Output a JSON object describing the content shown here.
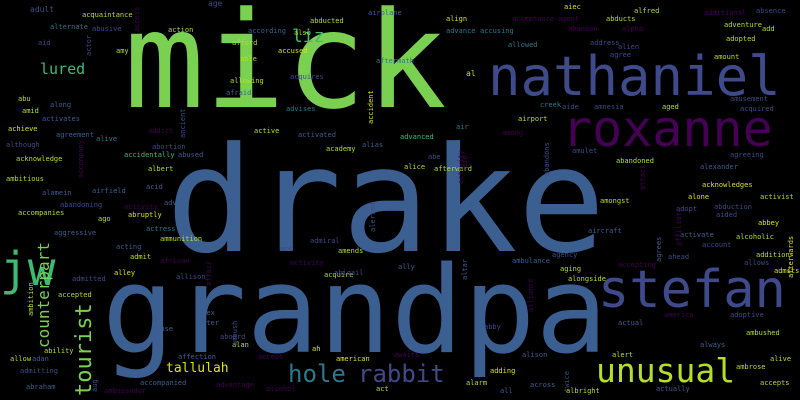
{
  "palette": {
    "background": "#000000",
    "lime": "#7ad151",
    "steel_blue": "#3b5f91",
    "indigo": "#3e4a89",
    "purple": "#440154",
    "teal": "#2a788e",
    "yellow": "#dbe318",
    "green": "#3bbb75",
    "grey": "#9e9e9e"
  },
  "words": [
    {
      "text": "drake",
      "color": "#3b5f91"
    },
    {
      "text": "mick",
      "color": "#7ad151"
    },
    {
      "text": "grandpa",
      "color": "#3b5f91"
    },
    {
      "text": "nathaniel",
      "color": "#3e4a89"
    },
    {
      "text": "roxanne",
      "color": "#440154"
    },
    {
      "text": "stefan",
      "color": "#3e4a89"
    },
    {
      "text": "unusual",
      "color": "#b5de2b"
    },
    {
      "text": "jw",
      "color": "#3bbb75"
    },
    {
      "text": "hole",
      "color": "#2a788e"
    },
    {
      "text": "rabbit",
      "color": "#3e4a89"
    },
    {
      "text": "tourist",
      "color": "#7ad151"
    },
    {
      "text": "counterpart",
      "color": "#7ad151"
    },
    {
      "text": "lured",
      "color": "#3bbb75"
    },
    {
      "text": "liz",
      "color": "#3bbb75"
    },
    {
      "text": "tallulah",
      "color": "#dbe318"
    },
    {
      "text": "adult",
      "color": "#3e4a89"
    },
    {
      "text": "age",
      "color": "#3e4a89"
    },
    {
      "text": "alternate",
      "color": "#2a788e"
    },
    {
      "text": "acquaintance",
      "color": "#b5de2b"
    },
    {
      "text": "abusive",
      "color": "#3e4a89"
    },
    {
      "text": "action",
      "color": "#b5de2b"
    },
    {
      "text": "according",
      "color": "#3b5f91"
    },
    {
      "text": "also",
      "color": "#b5de2b"
    },
    {
      "text": "abducted",
      "color": "#b5de2b"
    },
    {
      "text": "airplane",
      "color": "#3b5f91"
    },
    {
      "text": "align",
      "color": "#dbe318"
    },
    {
      "text": "advance",
      "color": "#2a788e"
    },
    {
      "text": "accusing",
      "color": "#2a788e"
    },
    {
      "text": "acceptance",
      "color": "#440154"
    },
    {
      "text": "agent",
      "color": "#440154"
    },
    {
      "text": "aiec",
      "color": "#dbe318"
    },
    {
      "text": "abducts",
      "color": "#b5de2b"
    },
    {
      "text": "alfred",
      "color": "#b5de2b"
    },
    {
      "text": "additional",
      "color": "#440154"
    },
    {
      "text": "absence",
      "color": "#3e4a89"
    },
    {
      "text": "abandon",
      "color": "#440154"
    },
    {
      "text": "alpha",
      "color": "#440154"
    },
    {
      "text": "adventure",
      "color": "#b5de2b"
    },
    {
      "text": "add",
      "color": "#b5de2b"
    },
    {
      "text": "aid",
      "color": "#3e4a89"
    },
    {
      "text": "amy",
      "color": "#b5de2b"
    },
    {
      "text": "afford",
      "color": "#b5de2b"
    },
    {
      "text": "accused",
      "color": "#dbe318"
    },
    {
      "text": "allowed",
      "color": "#2a788e"
    },
    {
      "text": "address",
      "color": "#3e4a89"
    },
    {
      "text": "alien",
      "color": "#3e4a89"
    },
    {
      "text": "adopted",
      "color": "#b5de2b"
    },
    {
      "text": "amount",
      "color": "#b5de2b"
    },
    {
      "text": "able",
      "color": "#b5de2b"
    },
    {
      "text": "aftermath",
      "color": "#2a788e"
    },
    {
      "text": "al",
      "color": "#b5de2b"
    },
    {
      "text": "agree",
      "color": "#3e4a89"
    },
    {
      "text": "allowing",
      "color": "#b5de2b"
    },
    {
      "text": "afraid",
      "color": "#3b5f91"
    },
    {
      "text": "acquires",
      "color": "#3e4a89"
    },
    {
      "text": "abu",
      "color": "#b5de2b"
    },
    {
      "text": "along",
      "color": "#3b5f91"
    },
    {
      "text": "amid",
      "color": "#b5de2b"
    },
    {
      "text": "activates",
      "color": "#3b5f91"
    },
    {
      "text": "advises",
      "color": "#2a788e"
    },
    {
      "text": "creek",
      "color": "#2a788e"
    },
    {
      "text": "aide",
      "color": "#3e4a89"
    },
    {
      "text": "amnesia",
      "color": "#3e4a89"
    },
    {
      "text": "aged",
      "color": "#b5de2b"
    },
    {
      "text": "amusement",
      "color": "#3e4a89"
    },
    {
      "text": "acquired",
      "color": "#3e4a89"
    },
    {
      "text": "achieve",
      "color": "#dbe318"
    },
    {
      "text": "agreement",
      "color": "#3b5f91"
    },
    {
      "text": "alive",
      "color": "#2a788e"
    },
    {
      "text": "addict",
      "color": "#440154"
    },
    {
      "text": "active",
      "color": "#b5de2b"
    },
    {
      "text": "activated",
      "color": "#3b5f91"
    },
    {
      "text": "air",
      "color": "#2a788e"
    },
    {
      "text": "airport",
      "color": "#b5de2b"
    },
    {
      "text": "among",
      "color": "#440154"
    },
    {
      "text": "advanced",
      "color": "#3bbb75"
    },
    {
      "text": "although",
      "color": "#3e4a89"
    },
    {
      "text": "abortion",
      "color": "#3e4a89"
    },
    {
      "text": "academy",
      "color": "#b5de2b"
    },
    {
      "text": "alias",
      "color": "#3b5f91"
    },
    {
      "text": "amulet",
      "color": "#3e4a89"
    },
    {
      "text": "agreeing",
      "color": "#3e4a89"
    },
    {
      "text": "acknowledge",
      "color": "#b5de2b"
    },
    {
      "text": "accidentally",
      "color": "#3bbb75"
    },
    {
      "text": "abused",
      "color": "#3b5f91"
    },
    {
      "text": "abe",
      "color": "#3e4a89"
    },
    {
      "text": "abandoned",
      "color": "#b5de2b"
    },
    {
      "text": "alexander",
      "color": "#3b5f91"
    },
    {
      "text": "albert",
      "color": "#b5de2b"
    },
    {
      "text": "alice",
      "color": "#b5de2b"
    },
    {
      "text": "afterward",
      "color": "#b5de2b"
    },
    {
      "text": "ambitious",
      "color": "#b5de2b"
    },
    {
      "text": "acknowledges",
      "color": "#dbe318"
    },
    {
      "text": "alamein",
      "color": "#3b5f91"
    },
    {
      "text": "acid",
      "color": "#3b5f91"
    },
    {
      "text": "alone",
      "color": "#dbe318"
    },
    {
      "text": "abduction",
      "color": "#3e4a89"
    },
    {
      "text": "activist",
      "color": "#b5de2b"
    },
    {
      "text": "airfield",
      "color": "#3b5f91"
    },
    {
      "text": "amongst",
      "color": "#b5de2b"
    },
    {
      "text": "adopt",
      "color": "#3e4a89"
    },
    {
      "text": "aided",
      "color": "#3e4a89"
    },
    {
      "text": "abandoning",
      "color": "#3e4a89"
    },
    {
      "text": "activity",
      "color": "#440154"
    },
    {
      "text": "advice",
      "color": "#3b5f91"
    },
    {
      "text": "accompanies",
      "color": "#b5de2b"
    },
    {
      "text": "ago",
      "color": "#b5de2b"
    },
    {
      "text": "abruptly",
      "color": "#dbe318"
    },
    {
      "text": "abbey",
      "color": "#dbe318"
    },
    {
      "text": "actress",
      "color": "#2a788e"
    },
    {
      "text": "aggressive",
      "color": "#3b5f91"
    },
    {
      "text": "ammunition",
      "color": "#b5de2b"
    },
    {
      "text": "aircraft",
      "color": "#3b5f91"
    },
    {
      "text": "activate",
      "color": "#3b5f91"
    },
    {
      "text": "alcoholic",
      "color": "#b5de2b"
    },
    {
      "text": "admiral",
      "color": "#3e4a89"
    },
    {
      "text": "amends",
      "color": "#b5de2b"
    },
    {
      "text": "acting",
      "color": "#3b5f91"
    },
    {
      "text": "ace",
      "color": "#3e4a89"
    },
    {
      "text": "account",
      "color": "#3e4a89"
    },
    {
      "text": "addition",
      "color": "#b5de2b"
    },
    {
      "text": "admit",
      "color": "#b5de2b"
    },
    {
      "text": "african",
      "color": "#440154"
    },
    {
      "text": "activity",
      "color": "#440154"
    },
    {
      "text": "agency",
      "color": "#3e4a89"
    },
    {
      "text": "ambulance",
      "color": "#3b5f91"
    },
    {
      "text": "allows",
      "color": "#3e4a89"
    },
    {
      "text": "admits",
      "color": "#dbe318"
    },
    {
      "text": "alley",
      "color": "#dbe318"
    },
    {
      "text": "allison",
      "color": "#3e4a89"
    },
    {
      "text": "acquire",
      "color": "#b5de2b"
    },
    {
      "text": "abigail",
      "color": "#3e4a89"
    },
    {
      "text": "ally",
      "color": "#3b5f91"
    },
    {
      "text": "aging",
      "color": "#b5de2b"
    },
    {
      "text": "alongside",
      "color": "#b5de2b"
    },
    {
      "text": "accepting",
      "color": "#440154"
    },
    {
      "text": "ahead",
      "color": "#3e4a89"
    },
    {
      "text": "admitted",
      "color": "#3e4a89"
    },
    {
      "text": "accepted",
      "color": "#b5de2b"
    },
    {
      "text": "alex",
      "color": "#3b5f91"
    },
    {
      "text": "alter",
      "color": "#3b5f91"
    },
    {
      "text": "abuse",
      "color": "#3b5f91"
    },
    {
      "text": "aboard",
      "color": "#3e4a89"
    },
    {
      "text": "actual",
      "color": "#3b5f91"
    },
    {
      "text": "america",
      "color": "#440154"
    },
    {
      "text": "adoptive",
      "color": "#3e4a89"
    },
    {
      "text": "ambushed",
      "color": "#b5de2b"
    },
    {
      "text": "abby",
      "color": "#3e4a89"
    },
    {
      "text": "alan",
      "color": "#b5de2b"
    },
    {
      "text": "accept",
      "color": "#440154"
    },
    {
      "text": "ah",
      "color": "#dbe318"
    },
    {
      "text": "alison",
      "color": "#3b5f91"
    },
    {
      "text": "always",
      "color": "#3b5f91"
    },
    {
      "text": "ability",
      "color": "#b5de2b"
    },
    {
      "text": "allow",
      "color": "#b5de2b"
    },
    {
      "text": "adan",
      "color": "#3b5f91"
    },
    {
      "text": "affection",
      "color": "#3b5f91"
    },
    {
      "text": "american",
      "color": "#dbe318"
    },
    {
      "text": "awaits",
      "color": "#440154"
    },
    {
      "text": "alert",
      "color": "#b5de2b"
    },
    {
      "text": "alive",
      "color": "#b5de2b"
    },
    {
      "text": "admitting",
      "color": "#3e4a89"
    },
    {
      "text": "adding",
      "color": "#dbe318"
    },
    {
      "text": "ambrose",
      "color": "#b5de2b"
    },
    {
      "text": "abraham",
      "color": "#3b5f91"
    },
    {
      "text": "ambassador",
      "color": "#440154"
    },
    {
      "text": "accompanied",
      "color": "#3b5f91"
    },
    {
      "text": "advantage",
      "color": "#440154"
    },
    {
      "text": "alcohol",
      "color": "#440154"
    },
    {
      "text": "act",
      "color": "#b5de2b"
    },
    {
      "text": "alarm",
      "color": "#b5de2b"
    },
    {
      "text": "across",
      "color": "#3b5f91"
    },
    {
      "text": "all",
      "color": "#3b5f91"
    },
    {
      "text": "albright",
      "color": "#b5de2b"
    },
    {
      "text": "actually",
      "color": "#3b5f91"
    },
    {
      "text": "accepts",
      "color": "#b5de2b"
    },
    {
      "text": "accident",
      "color": "#dbe318"
    },
    {
      "text": "alerted",
      "color": "#3e4a89"
    },
    {
      "text": "aid",
      "color": "#440154"
    },
    {
      "text": "altar",
      "color": "#3b5f91"
    },
    {
      "text": "alliance",
      "color": "#440154"
    },
    {
      "text": "affair",
      "color": "#440154"
    },
    {
      "text": "ambush",
      "color": "#3e4a89"
    },
    {
      "text": "ambition",
      "color": "#b5de2b"
    },
    {
      "text": "ancient",
      "color": "#3e4a89"
    },
    {
      "text": "activity",
      "color": "#440154"
    },
    {
      "text": "actor",
      "color": "#3e4a89"
    },
    {
      "text": "access",
      "color": "#440154"
    },
    {
      "text": "affiliate",
      "color": "#440154"
    },
    {
      "text": "agrees",
      "color": "#3b5f91"
    },
    {
      "text": "afterwards",
      "color": "#dbe318"
    },
    {
      "text": "attack",
      "color": "#440154"
    },
    {
      "text": "twice",
      "color": "#3e4a89"
    },
    {
      "text": "aug",
      "color": "#3e4a89"
    },
    {
      "text": "accompany",
      "color": "#440154"
    },
    {
      "text": "abandons",
      "color": "#3e4a89"
    }
  ]
}
